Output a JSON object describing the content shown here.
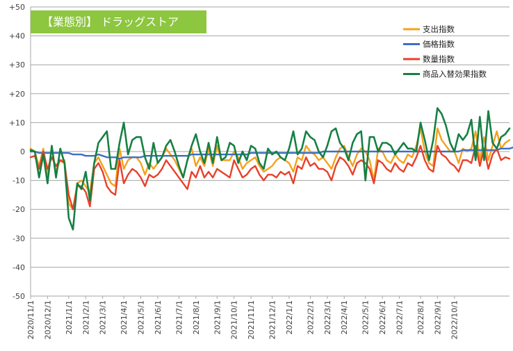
{
  "chart_data": {
    "type": "line",
    "title": "【業態別】 ドラッグストア",
    "title_bg_color": "#8dc63f",
    "ylim": [
      -50,
      50
    ],
    "y_ticks": [
      "+50",
      "+40",
      "+30",
      "+20",
      "+10",
      "0",
      "-10",
      "-20",
      "-30",
      "-40",
      "-50"
    ],
    "y_tick_values": [
      50,
      40,
      30,
      20,
      10,
      0,
      -10,
      -20,
      -30,
      -40,
      -50
    ],
    "x_tick_labels": [
      "2020/11/1",
      "2020/12/1",
      "2021/1/1",
      "2021/2/1",
      "2021/3/1",
      "2021/4/1",
      "2021/5/1",
      "2021/6/1",
      "2021/7/1",
      "2021/8/1",
      "2021/9/1",
      "2021/10/1",
      "2021/11/1",
      "2021/12/1",
      "2022/1/1",
      "2022/2/1",
      "2022/3/1",
      "2022/4/1",
      "2022/5/1",
      "2022/6/1",
      "2022/7/1",
      "2022/8/1",
      "2022/9/1",
      "2022/10/1"
    ],
    "x_tick_index": [
      0,
      4,
      9,
      13,
      17,
      22,
      26,
      30,
      35,
      39,
      44,
      48,
      52,
      57,
      61,
      66,
      70,
      74,
      79,
      83,
      87,
      92,
      96,
      100
    ],
    "grid": "horizontal",
    "legend_position": "top-right",
    "series": [
      {
        "name": "支出指数",
        "color": "#f5a11c",
        "values": [
          1,
          0,
          -5,
          1,
          -8,
          1,
          -7,
          -3,
          -3,
          -18,
          -20,
          -11,
          -10,
          -12,
          -14,
          -4,
          -2,
          -5,
          -8,
          -11,
          -12,
          1,
          -6,
          -3,
          -2,
          -2,
          -4,
          -8,
          -4,
          -6,
          -4,
          -2,
          1,
          -1,
          -3,
          -6,
          -9,
          -3,
          1,
          -5,
          -2,
          -5,
          1,
          -5,
          2,
          -3,
          -3,
          -3,
          0,
          -2,
          -6,
          -4,
          -3,
          -2,
          -5,
          -7,
          -6,
          -5,
          -3,
          -2,
          -3,
          -4,
          -7,
          -2,
          -3,
          2,
          0,
          -1,
          -3,
          -2,
          -4,
          -6,
          -2,
          1,
          2,
          -2,
          -5,
          -1,
          1,
          0,
          -3,
          -10,
          1,
          0,
          -3,
          -4,
          -1,
          -3,
          -4,
          -1,
          -2,
          2,
          8,
          0,
          -4,
          -5,
          8,
          4,
          2,
          0,
          0,
          -4,
          1,
          0,
          1,
          7,
          -3,
          5,
          -3,
          2,
          7,
          1,
          3,
          4
        ]
      },
      {
        "name": "価格指数",
        "color": "#3a6fc4",
        "values": [
          0,
          0,
          -0.5,
          -0.5,
          -0.5,
          -0.5,
          -0.5,
          -0.5,
          -0.5,
          -0.5,
          -1,
          -1,
          -1,
          -1.5,
          -1.5,
          -1.5,
          -1,
          -1.5,
          -2,
          -2,
          -2,
          -2.5,
          -2,
          -2,
          -2,
          -2,
          -2,
          -1.5,
          -1.5,
          -1.5,
          -1.5,
          -1.5,
          -1.5,
          -1.5,
          -1.5,
          -1.5,
          -1.5,
          -1.5,
          -1,
          -1,
          -1,
          -1,
          -1,
          -1,
          -1,
          -1,
          -1,
          -1,
          -1,
          -1,
          -1,
          -1,
          -0.5,
          -0.5,
          -0.5,
          -0.5,
          -0.5,
          -0.5,
          -0.5,
          -0.5,
          -0.5,
          -0.5,
          -0.5,
          -0.5,
          -0.5,
          -0.5,
          -0.5,
          -0.5,
          -0.5,
          0,
          0,
          0,
          0,
          0,
          0,
          0,
          0,
          0,
          0,
          0,
          0,
          0,
          0,
          0,
          0,
          0,
          0,
          0,
          0,
          0,
          0,
          0,
          0,
          0,
          0,
          0,
          0,
          0,
          0,
          0,
          0,
          0,
          0.5,
          0.5,
          0.5,
          0.5,
          0.5,
          0.5,
          0.5,
          0.5,
          0.5,
          1,
          1,
          1,
          1.5,
          1.5,
          2
        ]
      },
      {
        "name": "数量指数",
        "color": "#e8402a",
        "values": [
          -2,
          -1.5,
          -6,
          0,
          -6,
          -2,
          -5,
          -3,
          -4,
          -15,
          -20,
          -12,
          -12,
          -14,
          -19,
          -6,
          -4,
          -7,
          -12,
          -14,
          -15,
          -3,
          -11,
          -8,
          -6,
          -7,
          -9,
          -12,
          -8,
          -9,
          -8,
          -6,
          -3,
          -5,
          -7,
          -9,
          -11,
          -13,
          -7,
          -9,
          -5,
          -9,
          -7,
          -9,
          -6,
          -7,
          -8,
          -9,
          -3,
          -6,
          -9,
          -8,
          -6,
          -5,
          -8,
          -10,
          -8,
          -8,
          -9,
          -7,
          -8,
          -7,
          -11,
          -5,
          -6,
          -2,
          -5,
          -4,
          -6,
          -6,
          -7,
          -10,
          -5,
          -2,
          -3,
          -5,
          -8,
          -4,
          -3,
          -4,
          -6,
          -11,
          -3,
          -4,
          -6,
          -7,
          -4,
          -6,
          -7,
          -4,
          -5,
          -2,
          2,
          -3,
          -6,
          -7,
          2,
          -1,
          -2,
          -4,
          -5,
          -7,
          -3,
          -3,
          -4,
          2,
          -5,
          1,
          -6,
          -1,
          1,
          -3,
          -2,
          -2.5
        ]
      },
      {
        "name": "商品入替効果指数",
        "color": "#168043",
        "values": [
          0.5,
          0,
          -9,
          -1,
          -11,
          2,
          -9,
          1,
          -4,
          -23,
          -27,
          -11,
          -13,
          -7,
          -17,
          -4,
          3,
          5,
          7,
          -6,
          -6,
          3,
          10,
          -1,
          4,
          5,
          5,
          -2,
          -6,
          3,
          -4,
          -2,
          2,
          4,
          0,
          -5,
          -9,
          -3,
          2,
          6,
          0,
          -4,
          3,
          -4,
          5,
          -3,
          -2,
          3,
          2,
          -4,
          0,
          -3,
          2,
          1,
          -4,
          -6,
          1,
          -1,
          0,
          -2,
          -3,
          1,
          7,
          -1,
          1,
          7,
          5,
          4,
          0,
          -2,
          2,
          7,
          8,
          3,
          1,
          -3,
          3,
          6,
          7,
          -10,
          5,
          5,
          0,
          3,
          3,
          2,
          -1,
          1,
          3,
          1,
          1,
          0,
          10,
          4,
          -3,
          4,
          15,
          13,
          9,
          3,
          0,
          6,
          4,
          6,
          11,
          -3,
          12,
          -3,
          14,
          3,
          1,
          5,
          6,
          8
        ]
      }
    ]
  }
}
